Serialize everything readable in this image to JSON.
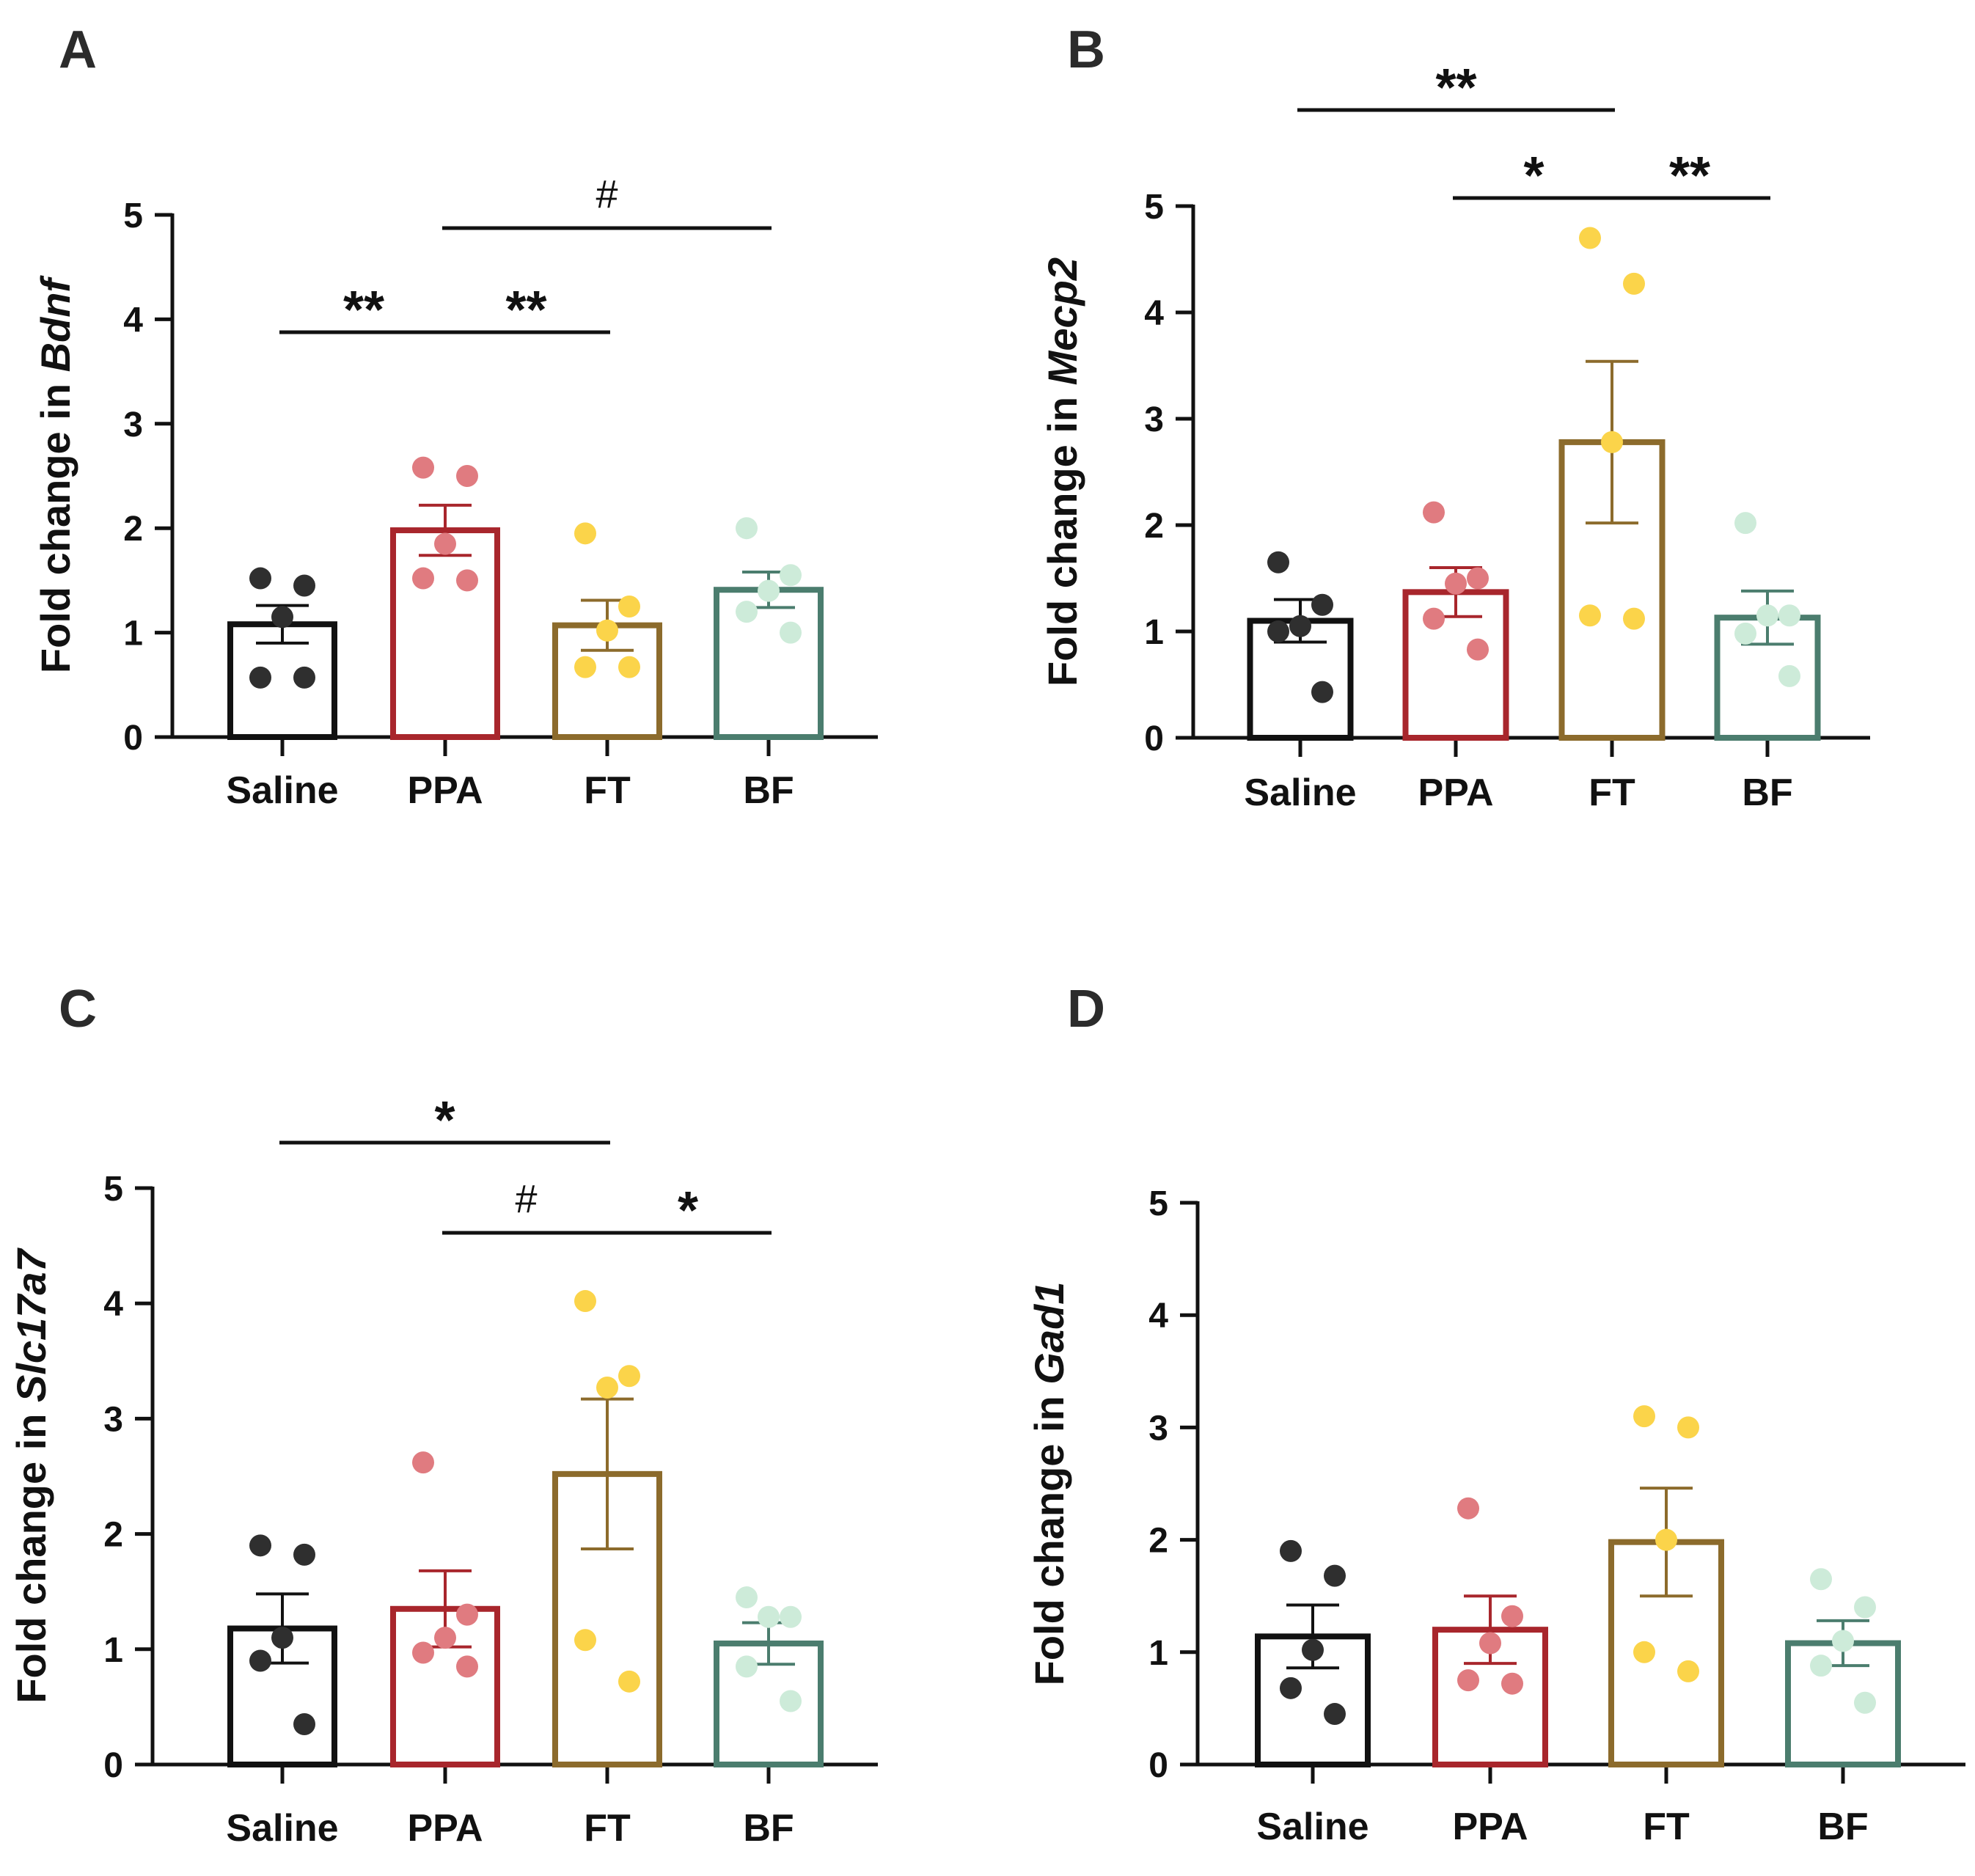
{
  "groups": [
    "Saline",
    "PPA",
    "FT",
    "BF"
  ],
  "colors": {
    "bar_edge": [
      "#111111",
      "#a8262c",
      "#8c6b2c",
      "#4b7d6e"
    ],
    "points": [
      "#2f2f2f",
      "#e07b80",
      "#fbd44a",
      "#cdebd9"
    ]
  },
  "chart_data": [
    {
      "type": "bar",
      "panel": "A",
      "ylabel_prefix": "Fold change in",
      "gene": "Bdnf",
      "categories": [
        "Saline",
        "PPA",
        "FT",
        "BF"
      ],
      "ylim": [
        0,
        5
      ],
      "yticks": [
        "0",
        "1",
        "2",
        "3",
        "4",
        "5"
      ],
      "values": [
        1.08,
        1.98,
        1.07,
        1.41
      ],
      "sem": [
        0.18,
        0.24,
        0.24,
        0.17
      ],
      "points": [
        [
          1.52,
          1.45,
          1.15,
          0.57,
          0.57
        ],
        [
          2.58,
          2.5,
          1.85,
          1.52,
          1.5
        ],
        [
          1.95,
          1.25,
          1.02,
          0.67,
          0.67
        ],
        [
          2.0,
          1.55,
          1.4,
          1.2,
          1.0
        ]
      ],
      "annotations": [
        {
          "from": 0,
          "to": 1,
          "label": "**"
        },
        {
          "from": 1,
          "to": 2,
          "label": "**"
        },
        {
          "from": 1,
          "to": 3,
          "label": "#"
        }
      ]
    },
    {
      "type": "bar",
      "panel": "B",
      "ylabel_prefix": "Fold change in",
      "gene": "Mecp2",
      "categories": [
        "Saline",
        "PPA",
        "FT",
        "BF"
      ],
      "ylim": [
        0,
        5
      ],
      "yticks": [
        "0",
        "1",
        "2",
        "3",
        "4",
        "5"
      ],
      "values": [
        1.1,
        1.37,
        2.78,
        1.13
      ],
      "sem": [
        0.2,
        0.23,
        0.76,
        0.25
      ],
      "points": [
        [
          1.65,
          1.25,
          1.05,
          1.0,
          0.43
        ],
        [
          2.12,
          1.5,
          1.45,
          1.12,
          0.83
        ],
        [
          4.7,
          4.27,
          2.78,
          1.15,
          1.12
        ],
        [
          2.02,
          1.15,
          1.15,
          0.98,
          0.58
        ]
      ],
      "annotations": [
        {
          "from": 0,
          "to": 2,
          "label": "**"
        },
        {
          "from": 1,
          "to": 2,
          "label": "*"
        },
        {
          "from": 2,
          "to": 3,
          "label": "**"
        }
      ]
    },
    {
      "type": "bar",
      "panel": "C",
      "ylabel_prefix": "Fold change in",
      "gene": "Slc17a7",
      "categories": [
        "Saline",
        "PPA",
        "FT",
        "BF"
      ],
      "ylim": [
        0,
        5
      ],
      "yticks": [
        "0",
        "1",
        "2",
        "3",
        "4",
        "5"
      ],
      "values": [
        1.18,
        1.35,
        2.52,
        1.05
      ],
      "sem": [
        0.3,
        0.33,
        0.65,
        0.18
      ],
      "points": [
        [
          1.9,
          1.82,
          1.1,
          0.9,
          0.35
        ],
        [
          2.62,
          1.3,
          1.1,
          0.97,
          0.85
        ],
        [
          4.02,
          3.37,
          3.27,
          1.08,
          0.72
        ],
        [
          1.45,
          1.28,
          1.28,
          0.85,
          0.55
        ]
      ],
      "annotations": [
        {
          "from": 0,
          "to": 2,
          "label": "*"
        },
        {
          "from": 1,
          "to": 2,
          "label": "#"
        },
        {
          "from": 2,
          "to": 3,
          "label": "*"
        }
      ]
    },
    {
      "type": "bar",
      "panel": "D",
      "ylabel_prefix": "Fold change in",
      "gene": "Gad1",
      "categories": [
        "Saline",
        "PPA",
        "FT",
        "BF"
      ],
      "ylim": [
        0,
        5
      ],
      "yticks": [
        "0",
        "1",
        "2",
        "3",
        "4",
        "5"
      ],
      "values": [
        1.14,
        1.2,
        1.98,
        1.08
      ],
      "sem": [
        0.28,
        0.3,
        0.48,
        0.2
      ],
      "points": [
        [
          1.9,
          1.68,
          1.02,
          0.68,
          0.45
        ],
        [
          2.28,
          1.32,
          1.08,
          0.75,
          0.72
        ],
        [
          3.1,
          3.0,
          2.0,
          1.0,
          0.83
        ],
        [
          1.65,
          1.4,
          1.1,
          0.88,
          0.55
        ]
      ],
      "annotations": []
    }
  ]
}
